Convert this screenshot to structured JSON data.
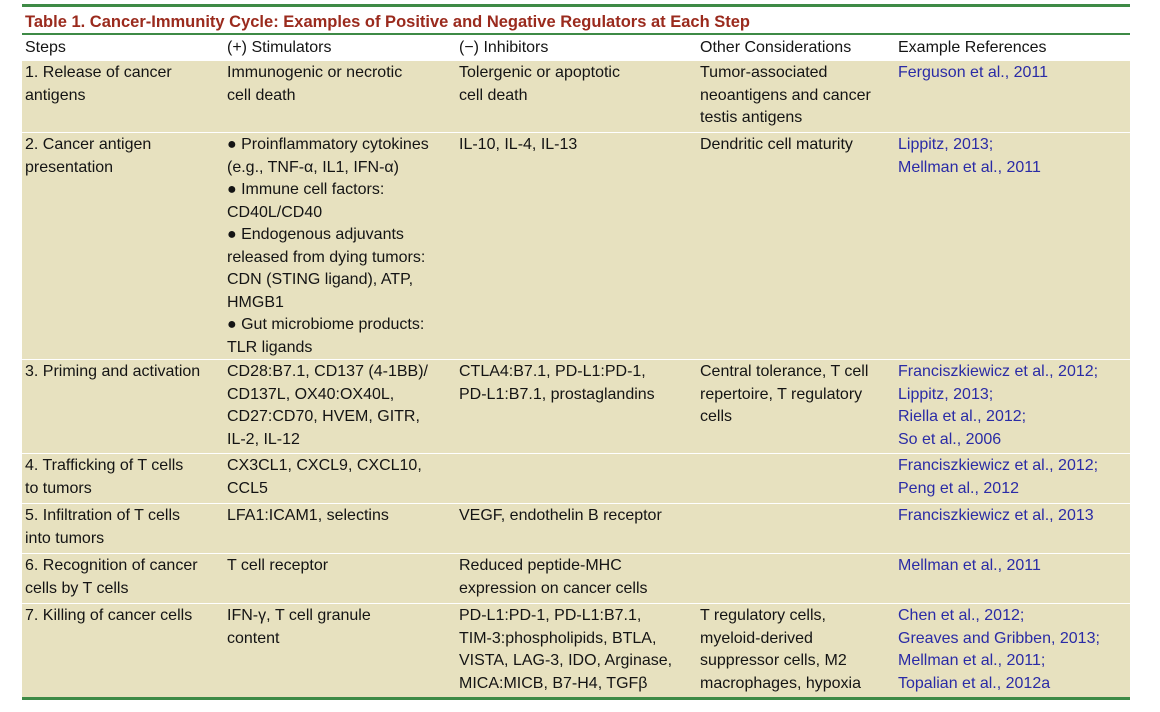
{
  "table": {
    "title": "Table 1.  Cancer-Immunity Cycle: Examples of Positive and Negative Regulators at Each Step",
    "headers": [
      "Steps",
      "(+) Stimulators",
      "(−) Inhibitors",
      "Other Considerations",
      "Example References"
    ],
    "rows": [
      {
        "step": [
          "1. Release of cancer",
          "antigens"
        ],
        "stim": [
          "Immunogenic or necrotic",
          "cell death"
        ],
        "inhib": [
          "Tolergenic or apoptotic",
          "cell death"
        ],
        "other": [
          "Tumor-associated",
          "neoantigens and cancer",
          "testis antigens"
        ],
        "refs": [
          "Ferguson et al., 2011"
        ]
      },
      {
        "step": [
          "2. Cancer antigen",
          "presentation"
        ],
        "stim": [
          "● Proinflammatory cytokines",
          "(e.g., TNF-α, IL1, IFN-α)",
          "● Immune cell factors:",
          "CD40L/CD40",
          "● Endogenous adjuvants",
          "released from dying tumors:",
          "CDN (STING ligand), ATP,",
          "HMGB1",
          "● Gut microbiome products:",
          "TLR ligands"
        ],
        "inhib": [
          "IL-10, IL-4, IL-13"
        ],
        "other": [
          "Dendritic cell maturity"
        ],
        "refs": [
          "Lippitz, 2013;",
          "Mellman et al., 2011"
        ]
      },
      {
        "step": [
          "3. Priming and activation"
        ],
        "stim": [
          "CD28:B7.1, CD137 (4-1BB)/",
          "CD137L, OX40:OX40L,",
          "CD27:CD70, HVEM, GITR,",
          "IL-2, IL-12"
        ],
        "inhib": [
          "CTLA4:B7.1, PD-L1:PD-1,",
          "PD-L1:B7.1, prostaglandins"
        ],
        "other": [
          "Central tolerance, T cell",
          "repertoire, T regulatory",
          "cells"
        ],
        "refs": [
          "Franciszkiewicz et al., 2012;",
          "Lippitz, 2013;",
          "Riella et al., 2012;",
          "So et al., 2006"
        ]
      },
      {
        "step": [
          "4. Trafficking of T cells",
          "to tumors"
        ],
        "stim": [
          "CX3CL1, CXCL9, CXCL10,",
          "CCL5"
        ],
        "inhib": [],
        "other": [],
        "refs": [
          "Franciszkiewicz et al., 2012;",
          "Peng et al., 2012"
        ]
      },
      {
        "step": [
          "5. Infiltration of T cells",
          "into tumors"
        ],
        "stim": [
          "LFA1:ICAM1, selectins"
        ],
        "inhib": [
          "VEGF, endothelin B receptor"
        ],
        "other": [],
        "refs": [
          "Franciszkiewicz et al., 2013"
        ]
      },
      {
        "step": [
          "6. Recognition of cancer",
          "cells by T cells"
        ],
        "stim": [
          "T cell receptor"
        ],
        "inhib": [
          "Reduced peptide-MHC",
          "expression on cancer cells"
        ],
        "other": [],
        "refs": [
          "Mellman et al., 2011"
        ]
      },
      {
        "step": [
          "7. Killing of cancer cells"
        ],
        "stim": [
          "IFN-γ, T cell granule",
          "content"
        ],
        "inhib": [
          "PD-L1:PD-1, PD-L1:B7.1,",
          "TIM-3:phospholipids, BTLA,",
          "VISTA, LAG-3, IDO, Arginase,",
          "MICA:MICB, B7-H4, TGFβ"
        ],
        "other": [
          "T regulatory cells,",
          "myeloid-derived",
          "suppressor cells, M2",
          "macrophages, hypoxia"
        ],
        "refs": [
          "Chen et al., 2012;",
          "Greaves and Gribben, 2013;",
          "Mellman et al., 2011;",
          "Topalian et al., 2012a"
        ]
      }
    ]
  },
  "colors": {
    "rule_green": "#3e8a46",
    "title_red": "#9a2a1d",
    "row_tan": "#e7e1bf",
    "link_blue": "#2a2ba6"
  }
}
